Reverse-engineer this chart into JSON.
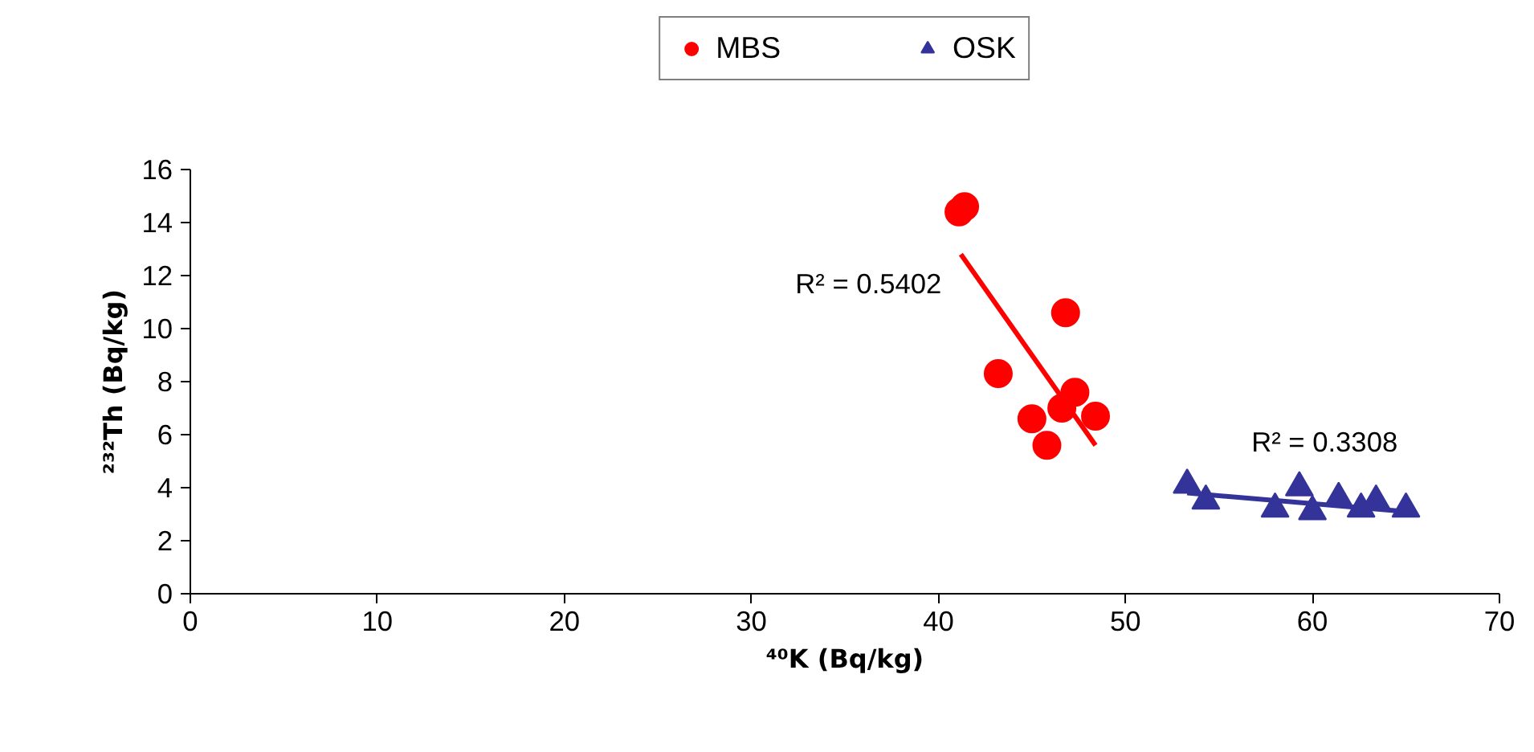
{
  "chart_data": {
    "type": "scatter",
    "xlabel": "⁴⁰K (Bq/kg)",
    "ylabel": "²³²Th (Bq/kg)",
    "xlim": [
      0,
      70
    ],
    "xticks": [
      0,
      10,
      20,
      30,
      40,
      50,
      60,
      70
    ],
    "ylim": [
      0,
      16
    ],
    "yticks": [
      0,
      2,
      4,
      6,
      8,
      10,
      12,
      14,
      16
    ],
    "grid": false,
    "legend": "top",
    "series": [
      {
        "name": "MBS",
        "color": "#ff0000",
        "marker": "circle",
        "x": [
          41.1,
          41.4,
          46.8,
          43.2,
          47.3,
          45.0,
          46.6,
          48.4,
          45.8
        ],
        "values": [
          14.4,
          14.6,
          10.6,
          8.3,
          7.6,
          6.6,
          7.0,
          6.7,
          5.6
        ]
      },
      {
        "name": "OSK",
        "color": "#333399",
        "marker": "triangle",
        "x": [
          53.3,
          54.3,
          58.0,
          59.3,
          60.0,
          61.4,
          62.6,
          63.4,
          65.0
        ],
        "values": [
          4.1,
          3.5,
          3.2,
          4.0,
          3.1,
          3.6,
          3.2,
          3.5,
          3.2
        ]
      },
      {
        "type": "line",
        "color": "#ff0000",
        "x": [
          41.2,
          48.4
        ],
        "values": [
          12.8,
          5.6
        ]
      },
      {
        "type": "line",
        "color": "#333399",
        "x": [
          53.3,
          65.0
        ],
        "values": [
          3.8,
          3.1
        ]
      }
    ],
    "annotations": [
      "R² = 0.5402",
      "R² = 0.3308"
    ]
  }
}
